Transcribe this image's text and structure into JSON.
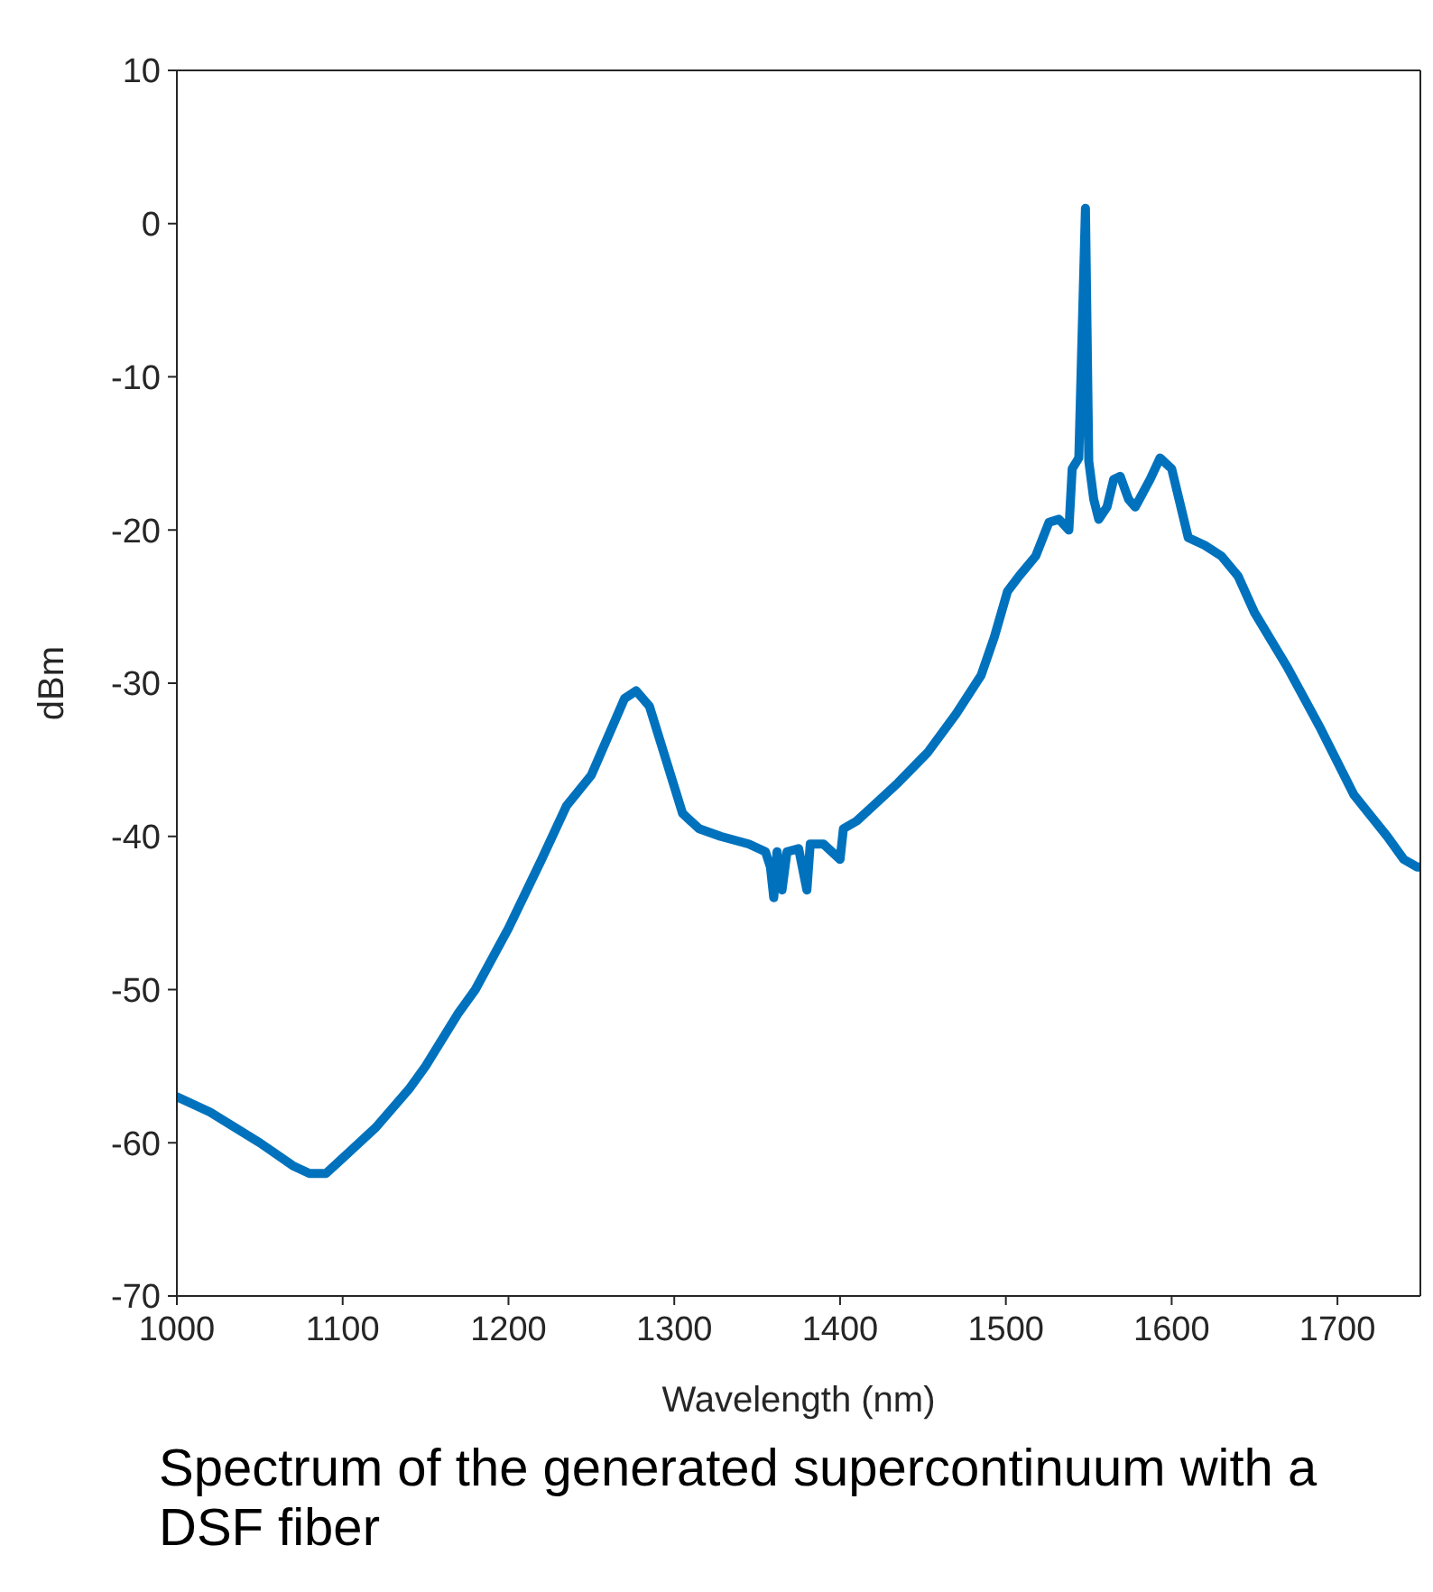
{
  "chart_data": {
    "type": "line",
    "xlabel": "Wavelength (nm)",
    "ylabel": "dBm",
    "xlim": [
      1000,
      1750
    ],
    "xticks": [
      1000,
      1100,
      1200,
      1300,
      1400,
      1500,
      1600,
      1700
    ],
    "ylim": [
      -70,
      10
    ],
    "yticks": [
      -70,
      -60,
      -50,
      -40,
      -30,
      -20,
      -10,
      0,
      10
    ],
    "grid": false,
    "marker": "none",
    "line_style": "solid",
    "series": [
      {
        "color": "#0072bd",
        "x": [
          1000,
          1020,
          1050,
          1070,
          1080,
          1090,
          1100,
          1120,
          1140,
          1150,
          1170,
          1180,
          1200,
          1220,
          1235,
          1250,
          1262,
          1270,
          1277,
          1285,
          1295,
          1305,
          1315,
          1328,
          1345,
          1355,
          1358,
          1360,
          1362,
          1365,
          1368,
          1375,
          1380,
          1382,
          1390,
          1400,
          1402,
          1410,
          1420,
          1435,
          1453,
          1470,
          1485,
          1493,
          1501,
          1508,
          1518,
          1526,
          1532,
          1538,
          1540,
          1544,
          1548,
          1550,
          1553,
          1556,
          1561,
          1565,
          1569,
          1574,
          1578,
          1587,
          1593,
          1600,
          1610,
          1620,
          1630,
          1640,
          1650,
          1670,
          1690,
          1710,
          1730,
          1740,
          1748,
          1750
        ],
        "values": [
          -57,
          -58,
          -60,
          -61.5,
          -62,
          -62,
          -61,
          -59,
          -56.5,
          -55,
          -51.5,
          -50,
          -46,
          -41.5,
          -38,
          -36,
          -33,
          -31,
          -30.5,
          -31.5,
          -35,
          -38.5,
          -39.5,
          -40,
          -40.5,
          -41,
          -42,
          -44,
          -41,
          -43.5,
          -41,
          -40.8,
          -43.5,
          -40.5,
          -40.5,
          -41.5,
          -39.5,
          -39,
          -38,
          -36.5,
          -34.5,
          -32,
          -29.5,
          -27,
          -24,
          -23,
          -21.7,
          -19.5,
          -19.3,
          -20,
          -16,
          -15.3,
          1,
          -15.5,
          -18,
          -19.3,
          -18.5,
          -16.7,
          -16.5,
          -18,
          -18.5,
          -16.7,
          -15.3,
          -16,
          -20.5,
          -21,
          -21.7,
          -23,
          -25.4,
          -29,
          -33,
          -37.3,
          -40,
          -41.5,
          -42,
          -42
        ]
      }
    ],
    "annotations": [
      "Spectrum of the generated supercontinuum with a DSF fiber"
    ]
  }
}
